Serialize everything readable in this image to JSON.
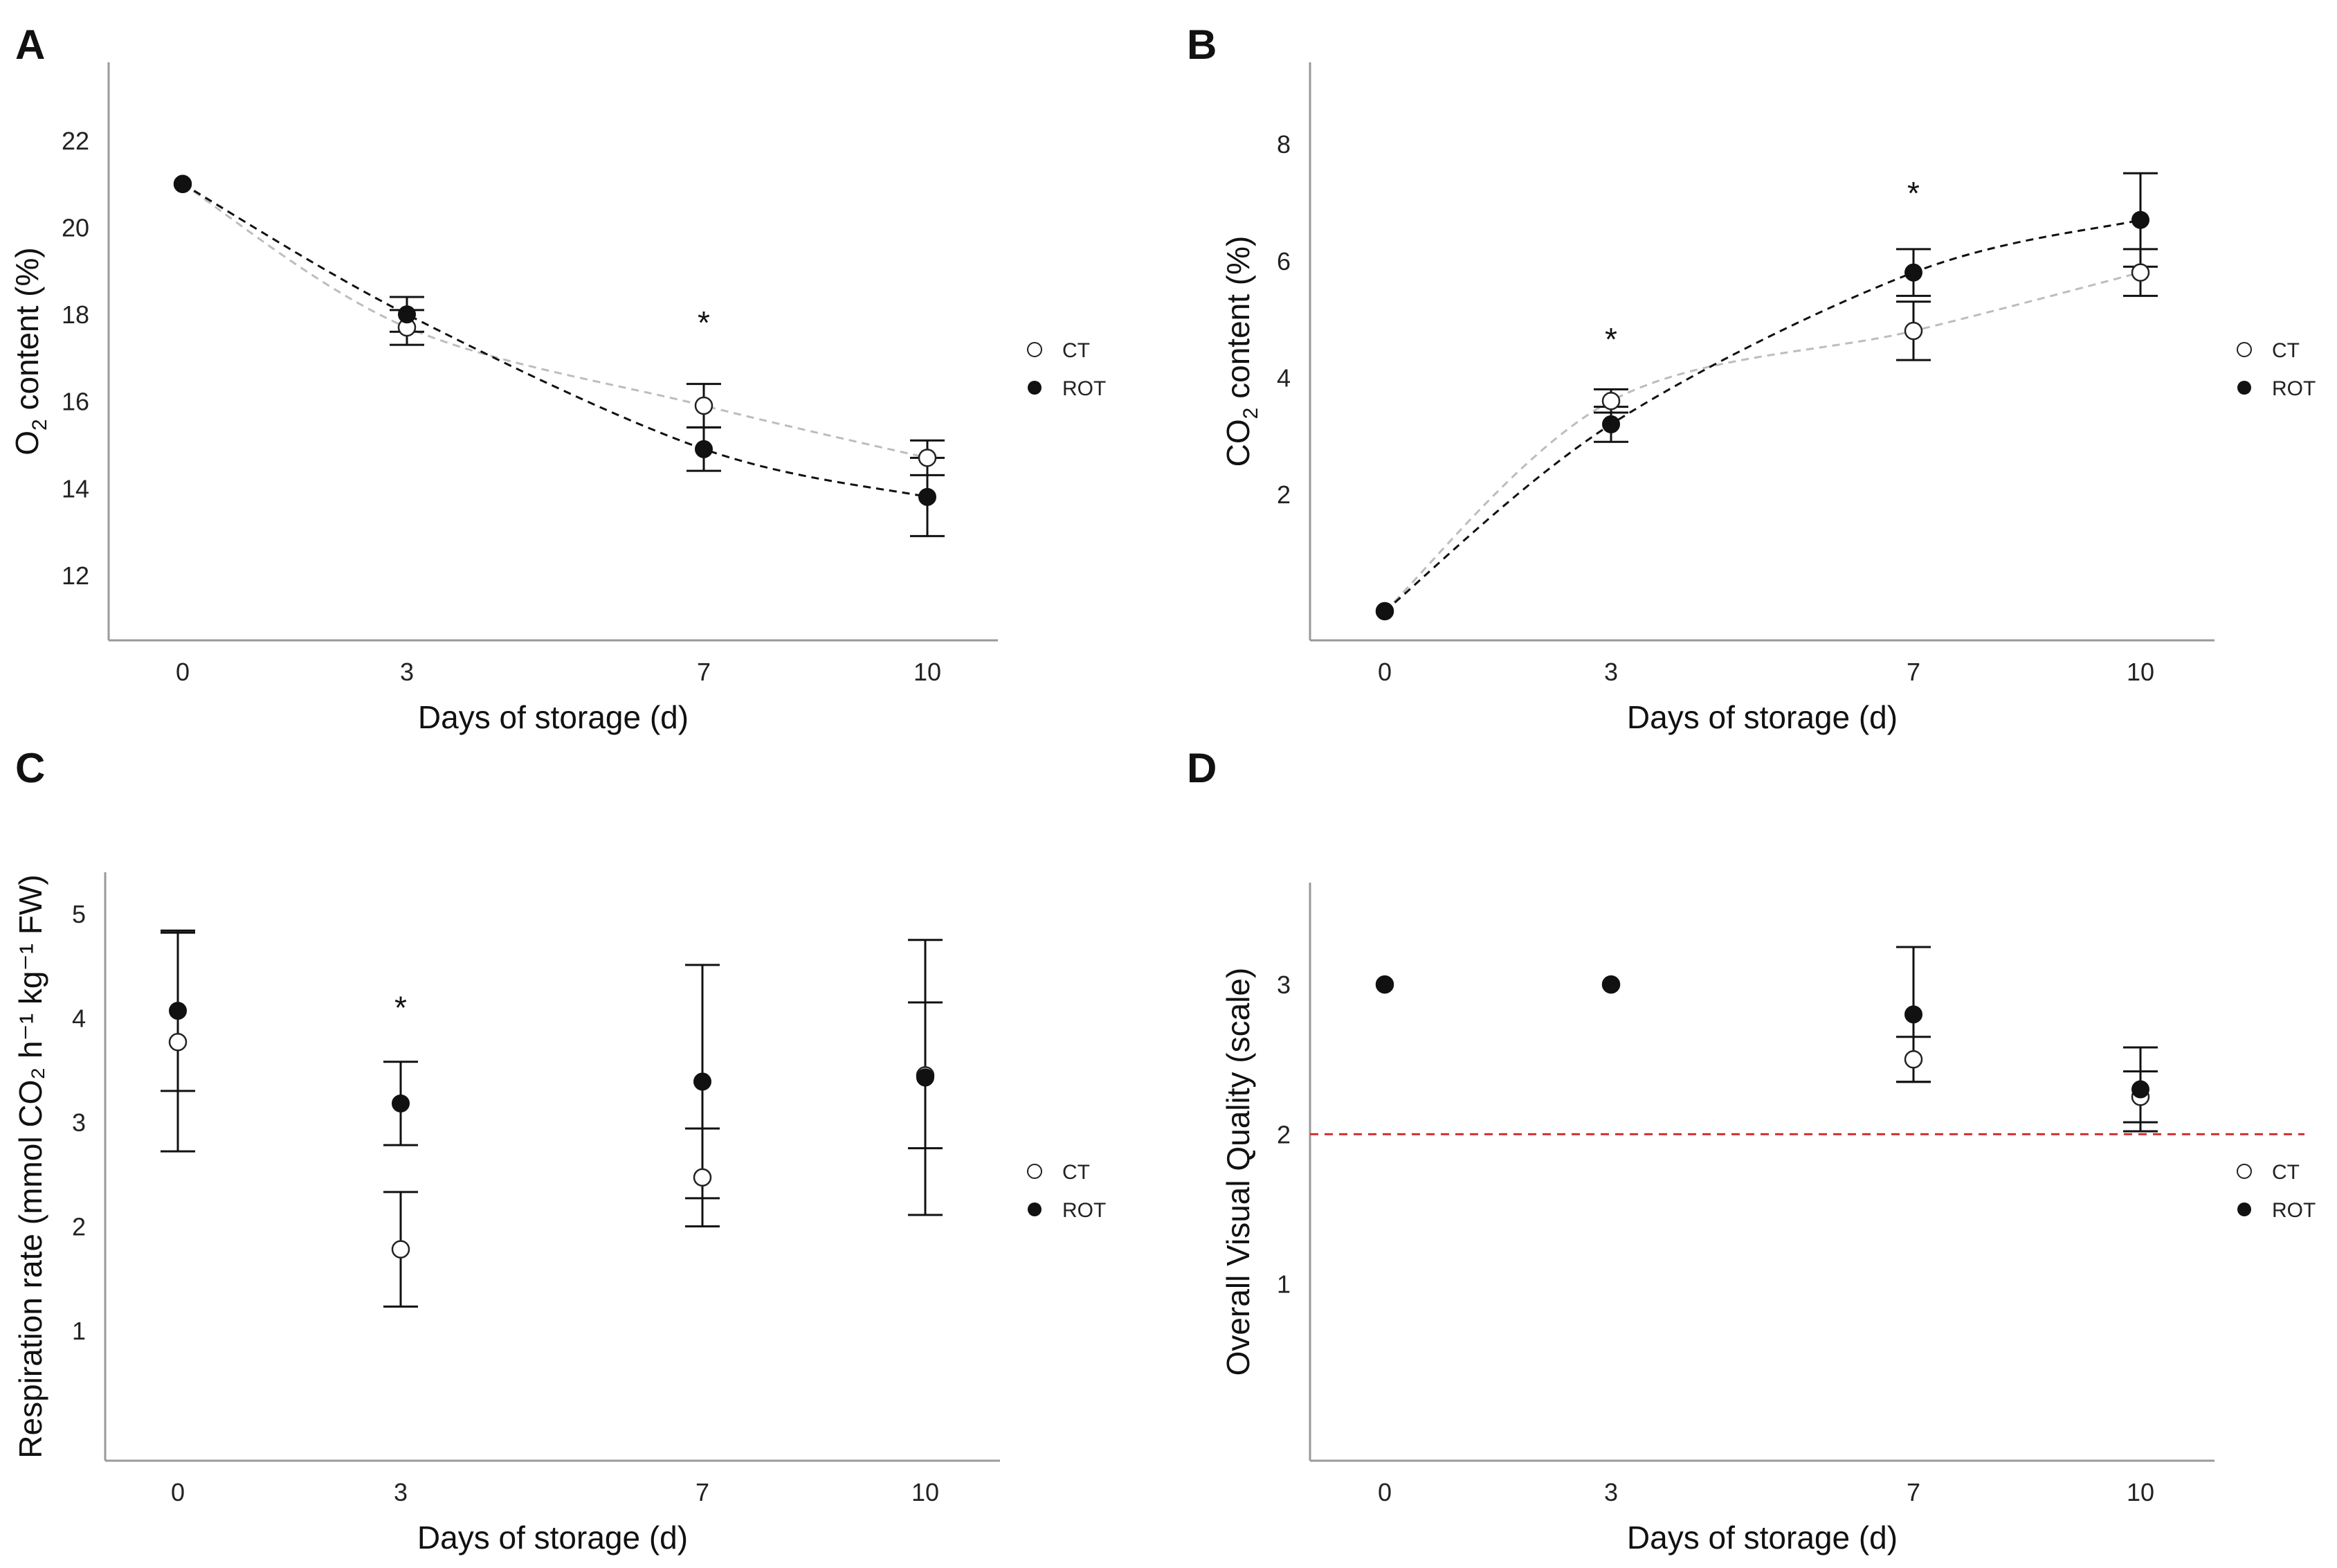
{
  "chart_data": [
    {
      "panel": "A",
      "type": "scatter",
      "x": [
        0,
        3,
        7,
        10
      ],
      "xticks": [
        "0",
        "3",
        "7",
        "10"
      ],
      "xlabel": "Days of storage (d)",
      "ylabel_parts": [
        "O",
        "2",
        " content (%)"
      ],
      "yticks": [
        12,
        14,
        16,
        18,
        20,
        22
      ],
      "ylim": [
        10.5,
        23.8
      ],
      "trend_lines": true,
      "series": [
        {
          "name": "CT",
          "marker": "open",
          "values": [
            21.0,
            17.7,
            15.9,
            14.7
          ],
          "errors": [
            0,
            0.4,
            0.5,
            0.4
          ]
        },
        {
          "name": "ROT",
          "marker": "filled",
          "values": [
            21.0,
            18.0,
            14.9,
            13.8
          ],
          "errors": [
            0,
            0.4,
            0.5,
            0.9
          ]
        }
      ],
      "significance": [
        {
          "x": 7,
          "y": 18.0,
          "label": "*"
        }
      ],
      "legend": {
        "position": "right",
        "labels": [
          "CT",
          "ROT"
        ]
      }
    },
    {
      "panel": "B",
      "type": "scatter",
      "x": [
        0,
        3,
        7,
        10
      ],
      "xticks": [
        "0",
        "3",
        "7",
        "10"
      ],
      "xlabel": "Days of storage (d)",
      "ylabel_parts": [
        "CO",
        "2",
        " content (%)"
      ],
      "yticks": [
        2,
        4,
        6,
        8
      ],
      "ylim": [
        -0.5,
        9.4
      ],
      "trend_lines": true,
      "series": [
        {
          "name": "CT",
          "marker": "open",
          "values": [
            0.0,
            3.6,
            4.8,
            5.8
          ],
          "errors": [
            0,
            0.2,
            0.5,
            0.4
          ]
        },
        {
          "name": "ROT",
          "marker": "filled",
          "values": [
            0.0,
            3.2,
            5.8,
            6.7
          ],
          "errors": [
            0,
            0.3,
            0.4,
            0.8
          ]
        }
      ],
      "significance": [
        {
          "x": 3,
          "y": 4.8,
          "label": "*"
        },
        {
          "x": 7,
          "y": 7.3,
          "label": "*"
        }
      ],
      "legend": {
        "position": "right",
        "labels": [
          "CT",
          "ROT"
        ]
      }
    },
    {
      "panel": "C",
      "type": "scatter",
      "x": [
        0,
        3,
        7,
        10
      ],
      "xticks": [
        "0",
        "3",
        "7",
        "10"
      ],
      "xlabel": "Days of storage (d)",
      "ylabel_text": "Respiration rate (mmol CO₂ h⁻¹ kg⁻¹ FW)",
      "yticks": [
        1,
        2,
        3,
        4,
        5
      ],
      "ylim": [
        -0.25,
        5.4
      ],
      "trend_lines": false,
      "series": [
        {
          "name": "CT",
          "marker": "open",
          "values": [
            3.77,
            1.78,
            2.47,
            3.45
          ],
          "errors": [
            1.05,
            0.55,
            0.47,
            0.7
          ]
        },
        {
          "name": "ROT",
          "marker": "filled",
          "values": [
            4.07,
            3.18,
            3.39,
            3.43
          ],
          "errors": [
            0.77,
            0.4,
            1.12,
            1.32
          ]
        }
      ],
      "significance": [
        {
          "x": 3,
          "y": 4.18,
          "label": "*"
        }
      ],
      "legend": {
        "position": "right",
        "labels": [
          "CT",
          "ROT"
        ]
      }
    },
    {
      "panel": "D",
      "type": "scatter",
      "x": [
        0,
        3,
        7,
        10
      ],
      "xticks": [
        "0",
        "3",
        "7",
        "10"
      ],
      "xlabel": "Days of storage (d)",
      "ylabel_text": "Overall Visual Quality (scale)",
      "yticks": [
        1,
        2,
        3
      ],
      "ylim": [
        -0.18,
        3.68
      ],
      "trend_lines": false,
      "reference_line": {
        "y": 2,
        "color": "#d03030",
        "style": "dashed"
      },
      "series": [
        {
          "name": "CT",
          "marker": "open",
          "values": [
            3.0,
            3.0,
            2.5,
            2.25
          ],
          "errors": [
            0,
            0,
            0.15,
            0.17
          ]
        },
        {
          "name": "ROT",
          "marker": "filled",
          "values": [
            3.0,
            3.0,
            2.8,
            2.3
          ],
          "errors": [
            0,
            0,
            0.45,
            0.28
          ]
        }
      ],
      "significance": [],
      "legend": {
        "position": "right",
        "labels": [
          "CT",
          "ROT"
        ]
      }
    }
  ]
}
